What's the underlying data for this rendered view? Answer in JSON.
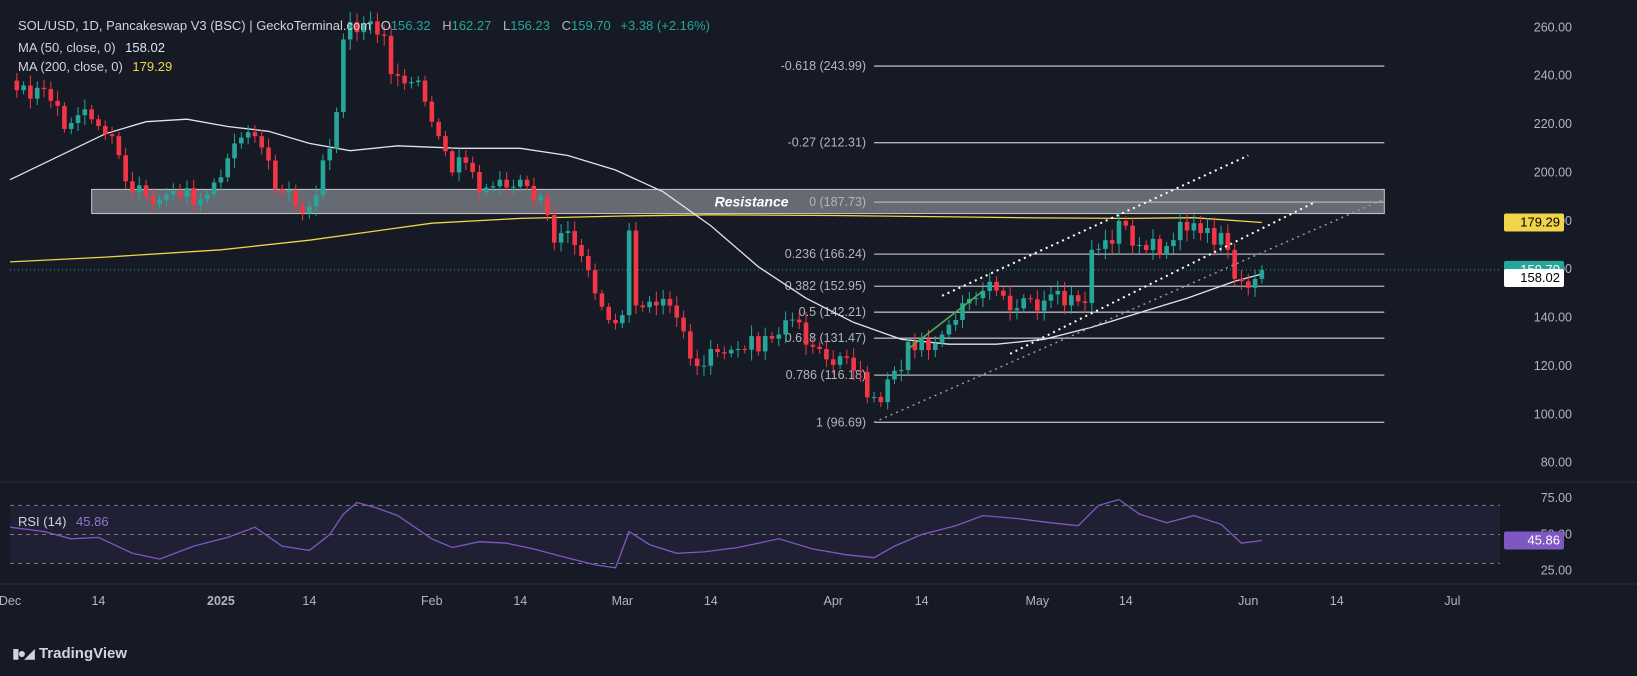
{
  "header": {
    "symbol": "SOL/USD, 1D, Pancakeswap V3 (BSC) | GeckoTerminal.com",
    "o_label": "O",
    "o": "156.32",
    "h_label": "H",
    "h": "162.27",
    "l_label": "L",
    "l": "156.23",
    "c_label": "C",
    "c": "159.70",
    "change": "+3.38 (+2.16%)"
  },
  "indicators": {
    "ma50": {
      "label": "MA (50, close, 0)",
      "value": "158.02"
    },
    "ma200": {
      "label": "MA (200, close, 0)",
      "value": "179.29"
    },
    "rsi": {
      "label": "RSI (14)",
      "value": "45.86"
    }
  },
  "brand": "TradingView",
  "colors": {
    "background": "#161a25",
    "up": "#26a69a",
    "down": "#f23645",
    "ma50": "#e0e3eb",
    "ma200": "#f0d44a",
    "rsi": "#7e57c2",
    "fib": "#b2b5be",
    "resistance_zone": "#c8cbd2"
  },
  "chart_data": {
    "type": "candlestick",
    "y_axis": {
      "range": [
        72,
        268
      ],
      "ticks": [
        80,
        100,
        120,
        140,
        160,
        180,
        200,
        220,
        240,
        260
      ]
    },
    "x_axis": {
      "start": "2024-12-01",
      "end": "2025-07-08",
      "ticks": [
        {
          "date": "2024-12-01",
          "label": "Dec"
        },
        {
          "date": "2024-12-14",
          "label": "14"
        },
        {
          "date": "2025-01-01",
          "label": "2025"
        },
        {
          "date": "2025-01-14",
          "label": "14"
        },
        {
          "date": "2025-02-01",
          "label": "Feb"
        },
        {
          "date": "2025-02-14",
          "label": "14"
        },
        {
          "date": "2025-03-01",
          "label": "Mar"
        },
        {
          "date": "2025-03-14",
          "label": "14"
        },
        {
          "date": "2025-04-01",
          "label": "Apr"
        },
        {
          "date": "2025-04-14",
          "label": "14"
        },
        {
          "date": "2025-05-01",
          "label": "May"
        },
        {
          "date": "2025-05-14",
          "label": "14"
        },
        {
          "date": "2025-06-01",
          "label": "Jun"
        },
        {
          "date": "2025-06-14",
          "label": "14"
        },
        {
          "date": "2025-07-01",
          "label": "Jul"
        }
      ]
    },
    "close_series": [
      {
        "date": "2024-12-01",
        "close": 238
      },
      {
        "date": "2024-12-05",
        "close": 235
      },
      {
        "date": "2024-12-09",
        "close": 218
      },
      {
        "date": "2024-12-13",
        "close": 222
      },
      {
        "date": "2024-12-16",
        "close": 215
      },
      {
        "date": "2024-12-19",
        "close": 192
      },
      {
        "date": "2024-12-22",
        "close": 187
      },
      {
        "date": "2024-12-26",
        "close": 190
      },
      {
        "date": "2024-12-30",
        "close": 191
      },
      {
        "date": "2025-01-03",
        "close": 212
      },
      {
        "date": "2025-01-06",
        "close": 215
      },
      {
        "date": "2025-01-09",
        "close": 193
      },
      {
        "date": "2025-01-12",
        "close": 186
      },
      {
        "date": "2025-01-14",
        "close": 186
      },
      {
        "date": "2025-01-16",
        "close": 205
      },
      {
        "date": "2025-01-18",
        "close": 225
      },
      {
        "date": "2025-01-19",
        "close": 255
      },
      {
        "date": "2025-01-21",
        "close": 258
      },
      {
        "date": "2025-01-24",
        "close": 257
      },
      {
        "date": "2025-01-27",
        "close": 240
      },
      {
        "date": "2025-01-30",
        "close": 238
      },
      {
        "date": "2025-02-02",
        "close": 215
      },
      {
        "date": "2025-02-04",
        "close": 200
      },
      {
        "date": "2025-02-06",
        "close": 204
      },
      {
        "date": "2025-02-08",
        "close": 192
      },
      {
        "date": "2025-02-11",
        "close": 197
      },
      {
        "date": "2025-02-14",
        "close": 197
      },
      {
        "date": "2025-02-17",
        "close": 190
      },
      {
        "date": "2025-02-19",
        "close": 171
      },
      {
        "date": "2025-02-22",
        "close": 170
      },
      {
        "date": "2025-02-25",
        "close": 150
      },
      {
        "date": "2025-02-27",
        "close": 139
      },
      {
        "date": "2025-03-01",
        "close": 141
      },
      {
        "date": "2025-03-02",
        "close": 176
      },
      {
        "date": "2025-03-03",
        "close": 145
      },
      {
        "date": "2025-03-06",
        "close": 145
      },
      {
        "date": "2025-03-09",
        "close": 140
      },
      {
        "date": "2025-03-11",
        "close": 123
      },
      {
        "date": "2025-03-14",
        "close": 127
      },
      {
        "date": "2025-03-18",
        "close": 127
      },
      {
        "date": "2025-03-21",
        "close": 126
      },
      {
        "date": "2025-03-24",
        "close": 133
      },
      {
        "date": "2025-03-27",
        "close": 138
      },
      {
        "date": "2025-03-30",
        "close": 127
      },
      {
        "date": "2025-04-02",
        "close": 124
      },
      {
        "date": "2025-04-04",
        "close": 118
      },
      {
        "date": "2025-04-06",
        "close": 107
      },
      {
        "date": "2025-04-08",
        "close": 105
      },
      {
        "date": "2025-04-10",
        "close": 118
      },
      {
        "date": "2025-04-12",
        "close": 130
      },
      {
        "date": "2025-04-14",
        "close": 131
      },
      {
        "date": "2025-04-17",
        "close": 133
      },
      {
        "date": "2025-04-19",
        "close": 139
      },
      {
        "date": "2025-04-22",
        "close": 148
      },
      {
        "date": "2025-04-23",
        "close": 151
      },
      {
        "date": "2025-04-26",
        "close": 149
      },
      {
        "date": "2025-04-29",
        "close": 148
      },
      {
        "date": "2025-05-02",
        "close": 147
      },
      {
        "date": "2025-05-05",
        "close": 145
      },
      {
        "date": "2025-05-08",
        "close": 146
      },
      {
        "date": "2025-05-09",
        "close": 168
      },
      {
        "date": "2025-05-11",
        "close": 172
      },
      {
        "date": "2025-05-13",
        "close": 180
      },
      {
        "date": "2025-05-14",
        "close": 178
      },
      {
        "date": "2025-05-16",
        "close": 170
      },
      {
        "date": "2025-05-19",
        "close": 166
      },
      {
        "date": "2025-05-21",
        "close": 172
      },
      {
        "date": "2025-05-23",
        "close": 176
      },
      {
        "date": "2025-05-24",
        "close": 179
      },
      {
        "date": "2025-05-26",
        "close": 177
      },
      {
        "date": "2025-05-28",
        "close": 175
      },
      {
        "date": "2025-05-29",
        "close": 168
      },
      {
        "date": "2025-05-30",
        "close": 156
      },
      {
        "date": "2025-05-31",
        "close": 155
      },
      {
        "date": "2025-06-02",
        "close": 156
      },
      {
        "date": "2025-06-03",
        "close": 159.7
      }
    ],
    "ma50": [
      {
        "date": "2024-12-01",
        "value": 197
      },
      {
        "date": "2024-12-15",
        "value": 216
      },
      {
        "date": "2024-12-21",
        "value": 221
      },
      {
        "date": "2024-12-27",
        "value": 222
      },
      {
        "date": "2025-01-02",
        "value": 219
      },
      {
        "date": "2025-01-08",
        "value": 217
      },
      {
        "date": "2025-01-14",
        "value": 212
      },
      {
        "date": "2025-01-20",
        "value": 209
      },
      {
        "date": "2025-01-27",
        "value": 211
      },
      {
        "date": "2025-02-05",
        "value": 210
      },
      {
        "date": "2025-02-14",
        "value": 210
      },
      {
        "date": "2025-02-21",
        "value": 207
      },
      {
        "date": "2025-02-28",
        "value": 201
      },
      {
        "date": "2025-03-07",
        "value": 192
      },
      {
        "date": "2025-03-14",
        "value": 178
      },
      {
        "date": "2025-03-21",
        "value": 161
      },
      {
        "date": "2025-03-28",
        "value": 148
      },
      {
        "date": "2025-04-04",
        "value": 138
      },
      {
        "date": "2025-04-11",
        "value": 131
      },
      {
        "date": "2025-04-18",
        "value": 129
      },
      {
        "date": "2025-04-25",
        "value": 129
      },
      {
        "date": "2025-05-02",
        "value": 131
      },
      {
        "date": "2025-05-09",
        "value": 136
      },
      {
        "date": "2025-05-16",
        "value": 142
      },
      {
        "date": "2025-05-23",
        "value": 148
      },
      {
        "date": "2025-05-30",
        "value": 155
      },
      {
        "date": "2025-06-03",
        "value": 158.02
      }
    ],
    "ma200": [
      {
        "date": "2024-12-01",
        "value": 163
      },
      {
        "date": "2024-12-15",
        "value": 165
      },
      {
        "date": "2025-01-01",
        "value": 168
      },
      {
        "date": "2025-01-14",
        "value": 172
      },
      {
        "date": "2025-02-01",
        "value": 179
      },
      {
        "date": "2025-02-14",
        "value": 181
      },
      {
        "date": "2025-03-01",
        "value": 182
      },
      {
        "date": "2025-03-14",
        "value": 182.5
      },
      {
        "date": "2025-04-01",
        "value": 182.2
      },
      {
        "date": "2025-04-14",
        "value": 181.8
      },
      {
        "date": "2025-05-01",
        "value": 181.2
      },
      {
        "date": "2025-05-14",
        "value": 181
      },
      {
        "date": "2025-05-24",
        "value": 181.3
      },
      {
        "date": "2025-06-03",
        "value": 179.29
      }
    ],
    "resistance_zone": {
      "label": "Resistance",
      "from": "2024-12-13",
      "to": "2025-06-21",
      "low": 183,
      "high": 193
    },
    "fibonacci": {
      "from": "2025-04-07",
      "to": "2025-06-21",
      "levels": [
        {
          "label": "-0.618 (243.99)",
          "value": 243.99
        },
        {
          "label": "-0.27 (212.31)",
          "value": 212.31
        },
        {
          "label": "0 (187.73)",
          "value": 187.73
        },
        {
          "label": "0.236 (166.24)",
          "value": 166.24
        },
        {
          "label": "0.382 (152.95)",
          "value": 152.95
        },
        {
          "label": "0.5 (142.21)",
          "value": 142.21
        },
        {
          "label": "0.618 (131.47)",
          "value": 131.47
        },
        {
          "label": "0.786 (116.18)",
          "value": 116.18
        },
        {
          "label": "1 (96.69)",
          "value": 96.69
        }
      ]
    },
    "trend_lines": [
      {
        "style": "dotted-white",
        "from": {
          "date": "2025-04-17",
          "value": 149
        },
        "to": {
          "date": "2025-06-01",
          "value": 207
        }
      },
      {
        "style": "dotted-white",
        "from": {
          "date": "2025-04-27",
          "value": 125
        },
        "to": {
          "date": "2025-06-11",
          "value": 188
        }
      },
      {
        "style": "dotted-gray",
        "from": {
          "date": "2025-04-07",
          "value": 96.7
        },
        "to": {
          "date": "2025-06-21",
          "value": 189
        }
      },
      {
        "style": "solid-green",
        "from": {
          "date": "2025-04-12",
          "value": 127
        },
        "to": {
          "date": "2025-04-23",
          "value": 151
        }
      }
    ],
    "price_labels": [
      {
        "value": 179.29,
        "text": "179.29",
        "color": "#f0d44a",
        "text_color": "#000000"
      },
      {
        "value": 159.7,
        "text": "159.70",
        "color": "#26a69a",
        "text_color": "#ffffff"
      },
      {
        "value": 158.02,
        "text": "158.02",
        "color": "#ffffff",
        "text_color": "#000000"
      }
    ],
    "rsi": {
      "range": [
        20,
        82
      ],
      "ticks": [
        {
          "value": 25,
          "label": "25.00"
        },
        {
          "value": 50,
          "label": "50.00"
        },
        {
          "value": 75,
          "label": "75.00"
        }
      ],
      "band": [
        30,
        70
      ],
      "last_label": {
        "value": 45.86,
        "text": "45.86"
      },
      "series": [
        {
          "date": "2024-12-01",
          "value": 55
        },
        {
          "date": "2024-12-06",
          "value": 52
        },
        {
          "date": "2024-12-10",
          "value": 47
        },
        {
          "date": "2024-12-14",
          "value": 48
        },
        {
          "date": "2024-12-19",
          "value": 37
        },
        {
          "date": "2024-12-23",
          "value": 33
        },
        {
          "date": "2024-12-28",
          "value": 42
        },
        {
          "date": "2025-01-02",
          "value": 48
        },
        {
          "date": "2025-01-06",
          "value": 55
        },
        {
          "date": "2025-01-10",
          "value": 42
        },
        {
          "date": "2025-01-14",
          "value": 39
        },
        {
          "date": "2025-01-17",
          "value": 50
        },
        {
          "date": "2025-01-19",
          "value": 64
        },
        {
          "date": "2025-01-21",
          "value": 72
        },
        {
          "date": "2025-01-24",
          "value": 68
        },
        {
          "date": "2025-01-27",
          "value": 63
        },
        {
          "date": "2025-02-01",
          "value": 47
        },
        {
          "date": "2025-02-04",
          "value": 41
        },
        {
          "date": "2025-02-08",
          "value": 45
        },
        {
          "date": "2025-02-12",
          "value": 44
        },
        {
          "date": "2025-02-16",
          "value": 40
        },
        {
          "date": "2025-02-20",
          "value": 35
        },
        {
          "date": "2025-02-25",
          "value": 29
        },
        {
          "date": "2025-02-28",
          "value": 27
        },
        {
          "date": "2025-03-02",
          "value": 52
        },
        {
          "date": "2025-03-05",
          "value": 43
        },
        {
          "date": "2025-03-09",
          "value": 37
        },
        {
          "date": "2025-03-13",
          "value": 38
        },
        {
          "date": "2025-03-18",
          "value": 41
        },
        {
          "date": "2025-03-24",
          "value": 47
        },
        {
          "date": "2025-03-29",
          "value": 40
        },
        {
          "date": "2025-04-03",
          "value": 36
        },
        {
          "date": "2025-04-07",
          "value": 34
        },
        {
          "date": "2025-04-10",
          "value": 42
        },
        {
          "date": "2025-04-14",
          "value": 50
        },
        {
          "date": "2025-04-19",
          "value": 56
        },
        {
          "date": "2025-04-23",
          "value": 63
        },
        {
          "date": "2025-04-28",
          "value": 61
        },
        {
          "date": "2025-05-03",
          "value": 58
        },
        {
          "date": "2025-05-07",
          "value": 56
        },
        {
          "date": "2025-05-10",
          "value": 70
        },
        {
          "date": "2025-05-13",
          "value": 74
        },
        {
          "date": "2025-05-16",
          "value": 64
        },
        {
          "date": "2025-05-20",
          "value": 58
        },
        {
          "date": "2025-05-24",
          "value": 63
        },
        {
          "date": "2025-05-28",
          "value": 57
        },
        {
          "date": "2025-05-31",
          "value": 44
        },
        {
          "date": "2025-06-03",
          "value": 45.86
        }
      ]
    }
  }
}
